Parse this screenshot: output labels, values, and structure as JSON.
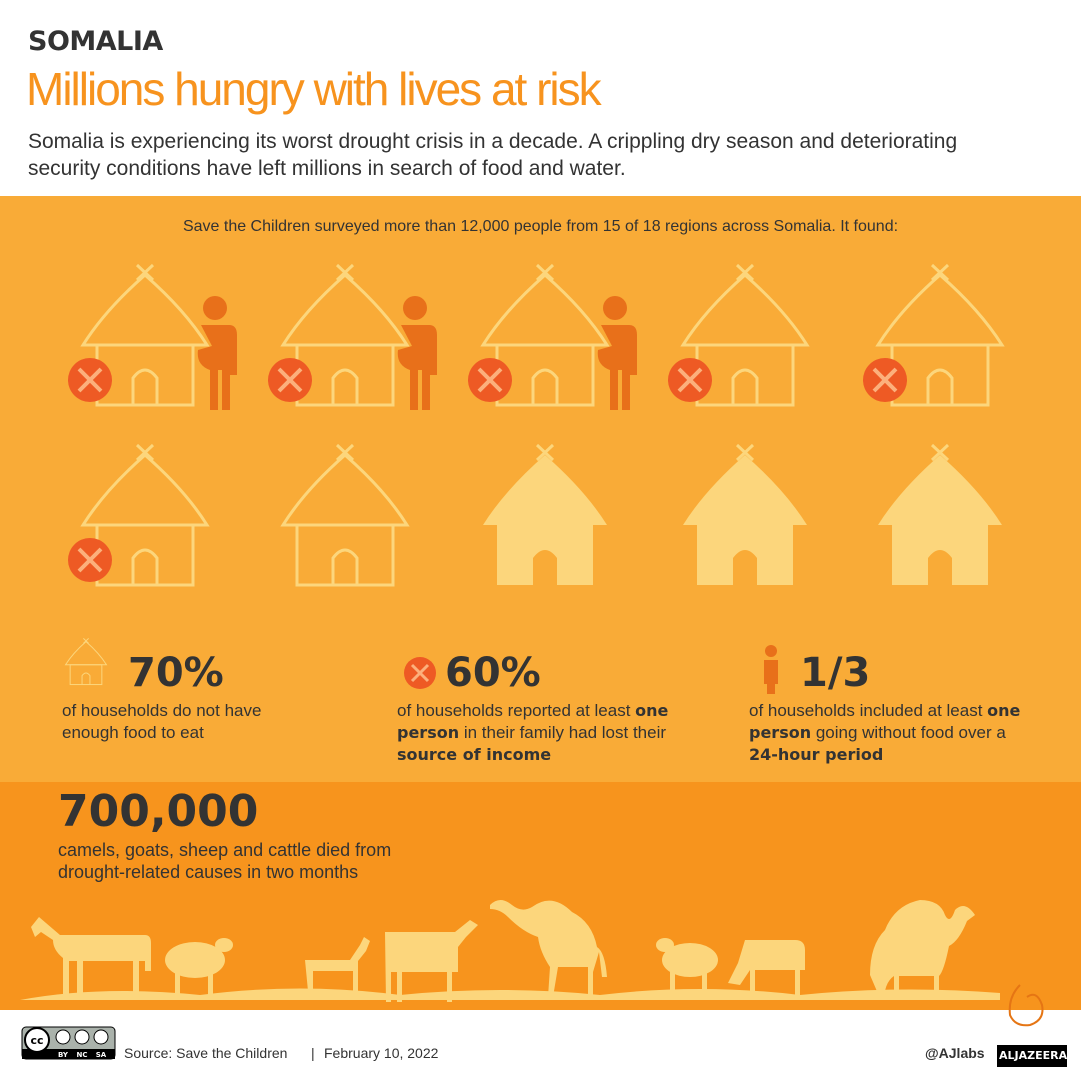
{
  "header": {
    "kicker": "SOMALIA",
    "title": "Millions hungry with lives at risk",
    "description": "Somalia is experiencing its worst drought crisis in a decade. A crippling dry season and deteriorating security conditions have left millions in search of food and water."
  },
  "survey": "Save the Children surveyed more than 12,000 people from 15 of 18 regions across Somalia. It found:",
  "stats": [
    {
      "value": "70%",
      "segments": [
        {
          "text": "of households do not have enough food to eat"
        }
      ]
    },
    {
      "value": "60%",
      "segments": [
        {
          "text": "of households reported at least "
        },
        {
          "text": "one person",
          "bold": true
        },
        {
          "text": " in their family had lost their "
        },
        {
          "text": "source of income",
          "bold": true
        }
      ]
    },
    {
      "value": "1/3",
      "segments": [
        {
          "text": "of households included at least "
        },
        {
          "text": "one person",
          "bold": true
        },
        {
          "text": " going without food over a "
        },
        {
          "text": "24-hour period",
          "bold": true
        }
      ]
    }
  ],
  "livestock": {
    "value": "700,000",
    "text": "camels, goats, sheep and cattle died from drought-related causes in two months"
  },
  "footer": {
    "license": [
      "cc",
      "BY",
      "NC",
      "SA"
    ],
    "source": "Source: Save the Children",
    "separator": "|",
    "date": "February 10, 2022",
    "handle": "@AJlabs",
    "brand": "ALJAZEERA"
  }
}
